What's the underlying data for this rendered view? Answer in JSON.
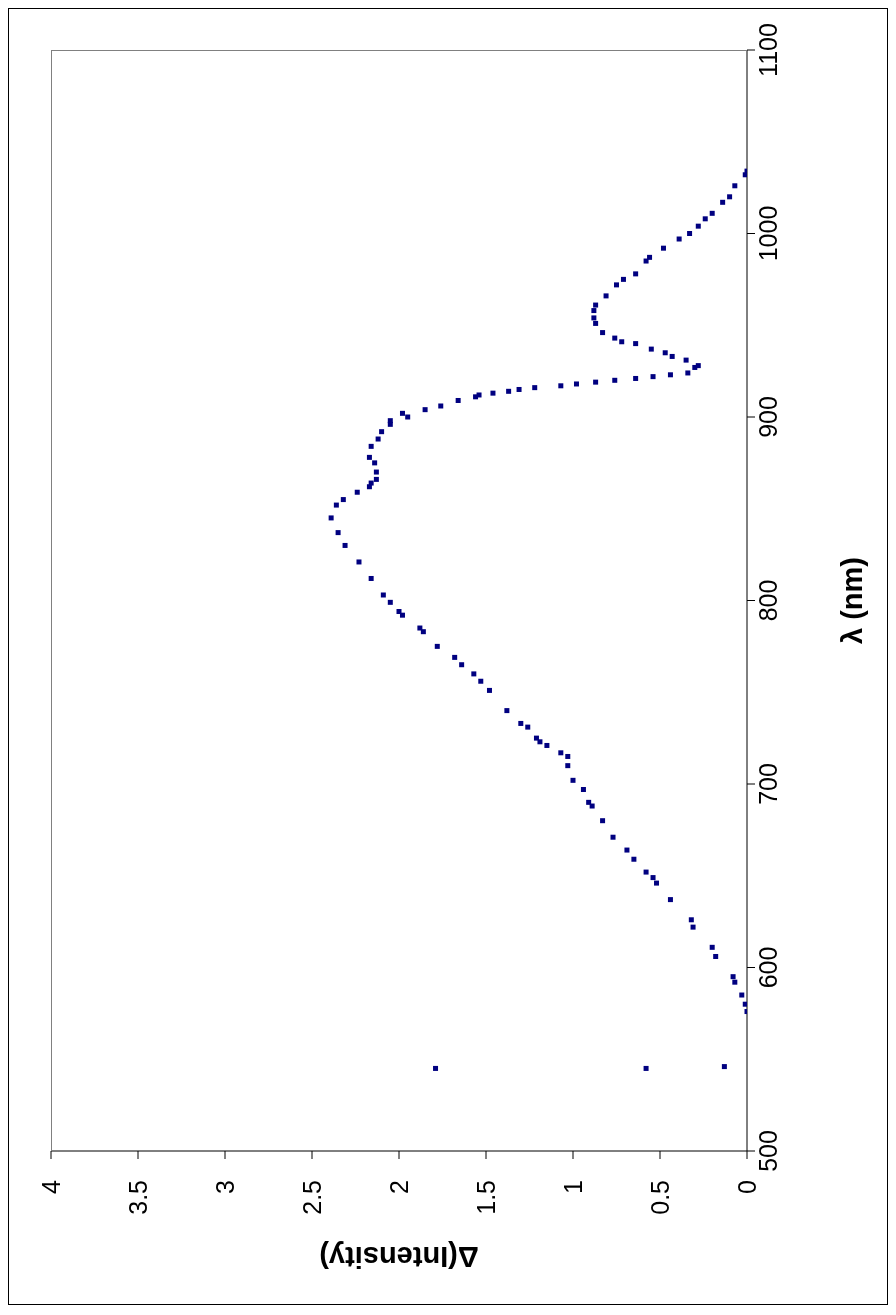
{
  "chart_data": {
    "type": "scatter",
    "xlabel": "Δ(Intensity)",
    "ylabel": "λ (nm)",
    "x": [
      1.79,
      0.58,
      0.13,
      0,
      0.01,
      0.03,
      0.07,
      0.08,
      0.18,
      0.2,
      0.31,
      0.32,
      0.44,
      0.52,
      0.54,
      0.58,
      0.65,
      0.69,
      0.77,
      0.83,
      0.89,
      0.91,
      0.94,
      1.0,
      1.03,
      1.03,
      1.07,
      1.15,
      1.19,
      1.21,
      1.26,
      1.3,
      1.38,
      1.48,
      1.53,
      1.57,
      1.64,
      1.68,
      1.78,
      1.86,
      1.88,
      1.98,
      2.0,
      2.05,
      2.09,
      2.16,
      2.23,
      2.31,
      2.35,
      2.39,
      2.36,
      2.32,
      2.24,
      2.17,
      2.16,
      2.13,
      2.13,
      2.14,
      2.17,
      2.16,
      2.12,
      2.1,
      2.05,
      2.05,
      1.95,
      1.98,
      1.85,
      1.76,
      1.66,
      1.56,
      1.54,
      1.46,
      1.37,
      1.31,
      1.22,
      1.07,
      0.98,
      0.87,
      0.76,
      0.64,
      0.54,
      0.44,
      0.34,
      0.3,
      0.28,
      0.35,
      0.43,
      0.47,
      0.55,
      0.64,
      0.72,
      0.76,
      0.83,
      0.87,
      0.88,
      0.88,
      0.87,
      0.81,
      0.75,
      0.71,
      0.64,
      0.58,
      0.56,
      0.48,
      0.39,
      0.33,
      0.28,
      0.24,
      0.2,
      0.14,
      0.1,
      0.07,
      0.01,
      0
    ],
    "values": [
      545,
      545,
      546,
      576,
      580,
      585,
      592,
      595,
      606,
      611,
      622,
      626,
      637,
      646,
      649,
      652,
      659,
      664,
      671,
      680,
      688,
      690,
      697,
      702,
      710,
      715,
      717,
      721,
      723,
      725,
      731,
      733,
      740,
      751,
      756,
      760,
      765,
      769,
      775,
      783,
      785,
      792,
      794,
      799,
      803,
      812,
      821,
      830,
      837,
      845,
      852,
      855,
      859,
      862,
      864,
      866,
      870,
      875,
      878,
      884,
      888,
      892,
      896,
      898,
      900,
      902,
      904,
      906,
      909,
      911,
      912,
      913,
      914,
      915,
      916,
      917,
      918,
      919,
      920,
      921,
      922,
      923,
      924,
      927,
      928,
      931,
      933,
      935,
      937,
      940,
      941,
      943,
      946,
      951,
      954,
      958,
      961,
      966,
      972,
      975,
      978,
      985,
      987,
      992,
      997,
      1000,
      1004,
      1008,
      1011,
      1017,
      1020,
      1026,
      1032,
      1034
    ],
    "color": "#000080",
    "marker": "square",
    "xlim": [
      4,
      0
    ],
    "xticks": [
      4,
      3.5,
      3,
      2.5,
      2,
      1.5,
      1,
      0.5,
      0
    ],
    "ylim": [
      500,
      1100
    ],
    "yticks": [
      500,
      600,
      700,
      800,
      900,
      1000,
      1100
    ]
  }
}
